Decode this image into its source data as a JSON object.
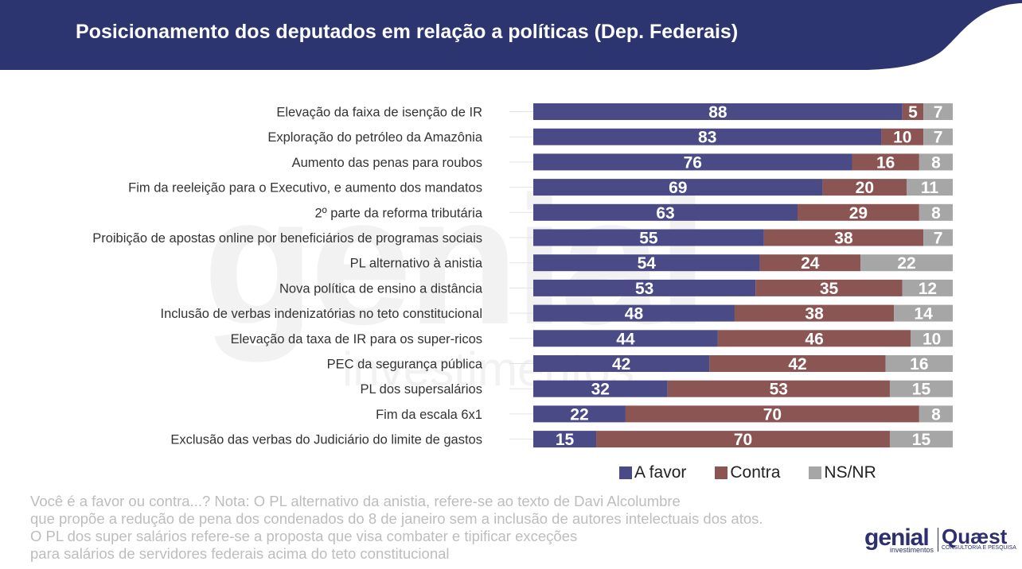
{
  "header": {
    "title": "Posicionamento dos deputados em relação a políticas (Dep. Federais)"
  },
  "colors": {
    "header_bg": "#2d3570",
    "a_favor": "#4a4a86",
    "contra": "#8b5553",
    "nsnr": "#a6a6a6"
  },
  "chart_data": {
    "type": "bar",
    "orientation": "horizontal",
    "stacked": true,
    "categories": [
      "Elevação da faixa de isenção de IR",
      "Exploração do petróleo da Amazônia",
      "Aumento das penas para roubos",
      "Fim da reeleição para o Executivo, e aumento dos mandatos",
      "2º parte da reforma tributária",
      "Proibição de apostas online por beneficiários de programas sociais",
      "PL alternativo à anistia",
      "Nova política de ensino a distância",
      "Inclusão de verbas indenizatórias no teto constitucional",
      "Elevação da taxa de IR para os super-ricos",
      "PEC da segurança pública",
      "PL dos supersalários",
      "Fim da escala 6x1",
      "Exclusão das verbas do Judiciário do limite de gastos"
    ],
    "series": [
      {
        "name": "A favor",
        "values": [
          88,
          83,
          76,
          69,
          63,
          55,
          54,
          53,
          48,
          44,
          42,
          32,
          22,
          15
        ]
      },
      {
        "name": "Contra",
        "values": [
          5,
          10,
          16,
          20,
          29,
          38,
          24,
          35,
          38,
          46,
          42,
          53,
          70,
          70
        ]
      },
      {
        "name": "NS/NR",
        "values": [
          7,
          7,
          8,
          11,
          8,
          7,
          22,
          12,
          14,
          10,
          16,
          15,
          8,
          15
        ]
      }
    ],
    "xlim": [
      0,
      100
    ],
    "grid": false,
    "legend": "bottom-right"
  },
  "legend": [
    {
      "label": "A favor"
    },
    {
      "label": "Contra"
    },
    {
      "label": "NS/NR"
    }
  ],
  "note": {
    "lines": [
      "Você é a favor ou contra...? Nota: O PL alternativo da anistia, refere-se ao texto de Davi Alcolumbre",
      "que propõe a redução de pena dos condenados do 8 de janeiro sem a inclusão de autores intelectuais dos atos.",
      "O PL dos super salários refere-se a proposta que visa combater e tipificar exceções",
      "para salários de servidores federais acima do teto constitucional"
    ]
  },
  "branding": {
    "genial": "genial",
    "genial_sub": "investimentos",
    "quaest": "Quæst",
    "quaest_sub": "CONSULTORIA E PESQUISA"
  }
}
